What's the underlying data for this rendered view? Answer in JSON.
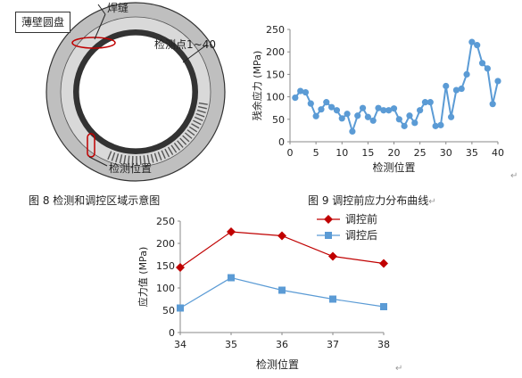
{
  "figure8": {
    "box_label": "薄壁圆盘",
    "weld_label": "焊缝",
    "points_label": "检测点1~40",
    "position_label": "检测位置",
    "caption": "图 8  检测和调控区域示意图"
  },
  "figure9_caption": "图 9  调控前应力分布曲线",
  "paragraph_mark": "↵",
  "chart_data": [
    {
      "type": "line",
      "xlabel": "检测位置",
      "ylabel": "残余应力 (MPa)",
      "xlim": [
        0,
        40
      ],
      "ylim": [
        0,
        250
      ],
      "xticks": [
        0,
        5,
        10,
        15,
        20,
        25,
        30,
        35,
        40
      ],
      "yticks": [
        0,
        50,
        100,
        150,
        200,
        250
      ],
      "grid": false,
      "legend": "none",
      "series": [
        {
          "color": "#5b9bd5",
          "x": [
            1,
            2,
            3,
            4,
            5,
            6,
            7,
            8,
            9,
            10,
            11,
            12,
            13,
            14,
            15,
            16,
            17,
            18,
            19,
            20,
            21,
            22,
            23,
            24,
            25,
            26,
            27,
            28,
            29,
            30,
            31,
            32,
            33,
            34,
            35,
            36,
            37,
            38,
            39,
            40
          ],
          "values": [
            98,
            113,
            110,
            85,
            57,
            72,
            88,
            77,
            70,
            52,
            62,
            23,
            58,
            75,
            55,
            47,
            75,
            70,
            70,
            74,
            50,
            35,
            58,
            42,
            70,
            88,
            88,
            35,
            37,
            124,
            55,
            115,
            118,
            150,
            222,
            215,
            175,
            163,
            84,
            135
          ]
        }
      ]
    },
    {
      "type": "line",
      "xlabel": "检测位置",
      "ylabel": "应力值 (MPa)",
      "categories": [
        "34",
        "35",
        "36",
        "37",
        "38"
      ],
      "ylim": [
        0,
        250
      ],
      "yticks": [
        0,
        50,
        100,
        150,
        200,
        250
      ],
      "grid": false,
      "legend": "top-right",
      "series": [
        {
          "name": "调控前",
          "color": "#c00000",
          "marker": "diamond",
          "values": [
            146,
            226,
            217,
            171,
            155
          ]
        },
        {
          "name": "调控后",
          "color": "#5b9bd5",
          "marker": "square",
          "values": [
            55,
            123,
            95,
            75,
            58
          ]
        }
      ]
    }
  ]
}
